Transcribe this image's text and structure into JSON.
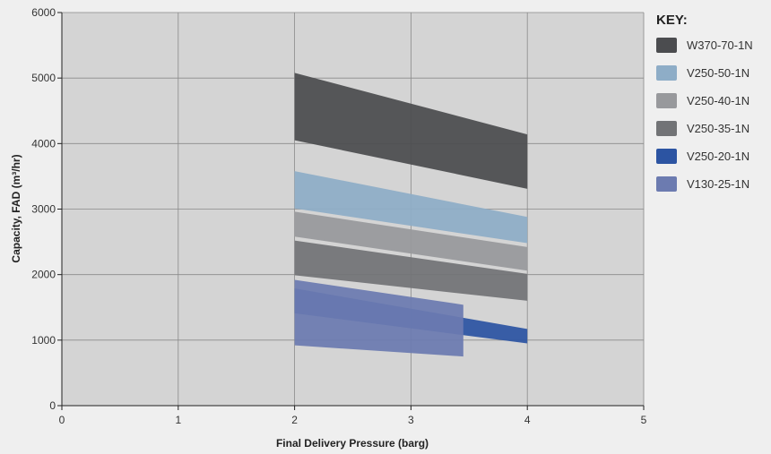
{
  "chart_data": {
    "type": "area",
    "title": "",
    "xlabel": "Final Delivery Pressure (barg)",
    "ylabel": "Capacity, FAD (m³/hr)",
    "xlim": [
      0,
      5
    ],
    "ylim": [
      0,
      6000
    ],
    "x_ticks": [
      "0",
      "1",
      "2",
      "3",
      "4",
      "5"
    ],
    "y_ticks": [
      "0",
      "1000",
      "2000",
      "3000",
      "4000",
      "5000",
      "6000"
    ],
    "grid": true,
    "legend_title": "KEY:",
    "legend_position": "right",
    "series": [
      {
        "name": "W370-70-1N",
        "color": "#4b4c4f",
        "x": [
          2,
          4
        ],
        "upper": [
          5080,
          4140
        ],
        "lower": [
          4050,
          3310
        ]
      },
      {
        "name": "V250-50-1N",
        "color": "#8eadc7",
        "x": [
          2,
          4
        ],
        "upper": [
          3580,
          2880
        ],
        "lower": [
          3010,
          2480
        ]
      },
      {
        "name": "V250-40-1N",
        "color": "#98999c",
        "x": [
          2,
          4
        ],
        "upper": [
          2960,
          2420
        ],
        "lower": [
          2580,
          2060
        ]
      },
      {
        "name": "V250-35-1N",
        "color": "#727376",
        "x": [
          2,
          4
        ],
        "upper": [
          2520,
          2010
        ],
        "lower": [
          1990,
          1600
        ]
      },
      {
        "name": "V250-20-1N",
        "color": "#2c54a2",
        "x": [
          2,
          4
        ],
        "upper": [
          1790,
          1170
        ],
        "lower": [
          1410,
          950
        ]
      },
      {
        "name": "V130-25-1N",
        "color": "#6c7bb0",
        "x": [
          2,
          3.45
        ],
        "upper": [
          1920,
          1540
        ],
        "lower": [
          920,
          750
        ]
      }
    ]
  }
}
